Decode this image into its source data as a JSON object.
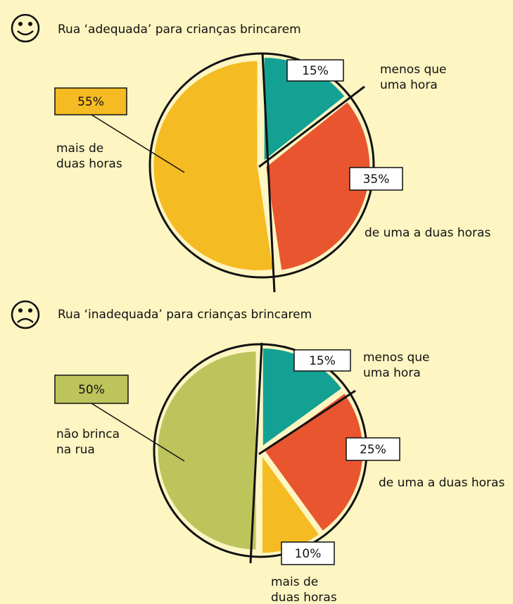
{
  "chart_data": [
    {
      "type": "pie",
      "title": "Rua ‘adequada’ para crianças brincarem",
      "categories": [
        "menos que uma hora",
        "de uma a duas horas",
        "mais de duas horas"
      ],
      "values": [
        15,
        35,
        55
      ],
      "value_labels": [
        "15%",
        "35%",
        "55%"
      ],
      "colors": [
        "#13a194",
        "#e8552f",
        "#f5bb22"
      ]
    },
    {
      "type": "pie",
      "title": "Rua ‘inadequada’ para crianças brincarem",
      "categories": [
        "menos que uma hora",
        "de uma a duas horas",
        "mais de duas horas",
        "não brinca na rua"
      ],
      "values": [
        15,
        25,
        10,
        50
      ],
      "value_labels": [
        "15%",
        "25%",
        "10%",
        "50%"
      ],
      "colors": [
        "#13a194",
        "#e8552f",
        "#f5bb22",
        "#bec45c"
      ]
    }
  ]
}
